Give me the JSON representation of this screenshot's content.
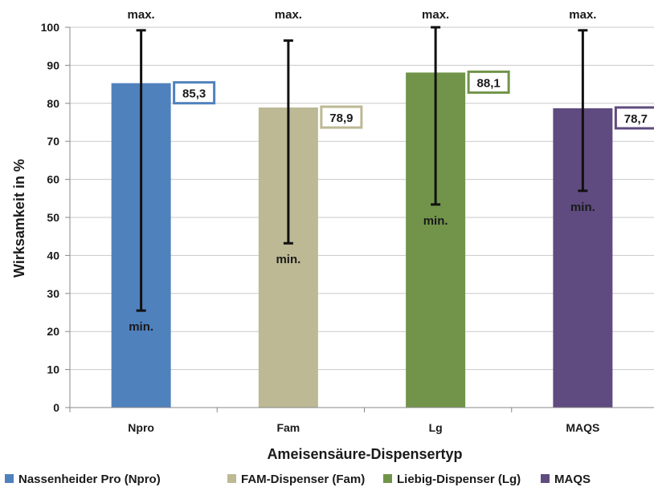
{
  "chart_data": {
    "type": "bar",
    "xlabel": "Ameisensäure-Dispensertyp",
    "ylabel": "Wirksamkeit in %",
    "ylim": [
      0,
      100
    ],
    "yticks": [
      "0",
      "10",
      "20",
      "30",
      "40",
      "50",
      "60",
      "70",
      "80",
      "90",
      "100"
    ],
    "grid": true,
    "legend_position": "bottom",
    "categories": [
      "Npro",
      "Fam",
      "Lg",
      "MAQS"
    ],
    "series": [
      {
        "values": [
          85.3,
          78.9,
          88.1,
          78.7
        ],
        "value_labels": [
          "85,3",
          "78,9",
          "88,1",
          "78,7"
        ],
        "error_min": [
          25.5,
          43.2,
          53.4,
          57.0
        ],
        "error_max": [
          99.2,
          96.5,
          100.0,
          99.2
        ],
        "colors": [
          "#4f81bd",
          "#bcb994",
          "#71944a",
          "#5f4b7f"
        ]
      }
    ],
    "error_labels": {
      "max": "max.",
      "min": "min."
    },
    "legend": [
      {
        "label": "Nassenheider Pro (Npro)",
        "color": "#4f81bd"
      },
      {
        "label": "FAM-Dispenser (Fam)",
        "color": "#bcb994"
      },
      {
        "label": "Liebig-Dispenser (Lg)",
        "color": "#71944a"
      },
      {
        "label": "MAQS",
        "color": "#5f4b7f"
      }
    ]
  }
}
